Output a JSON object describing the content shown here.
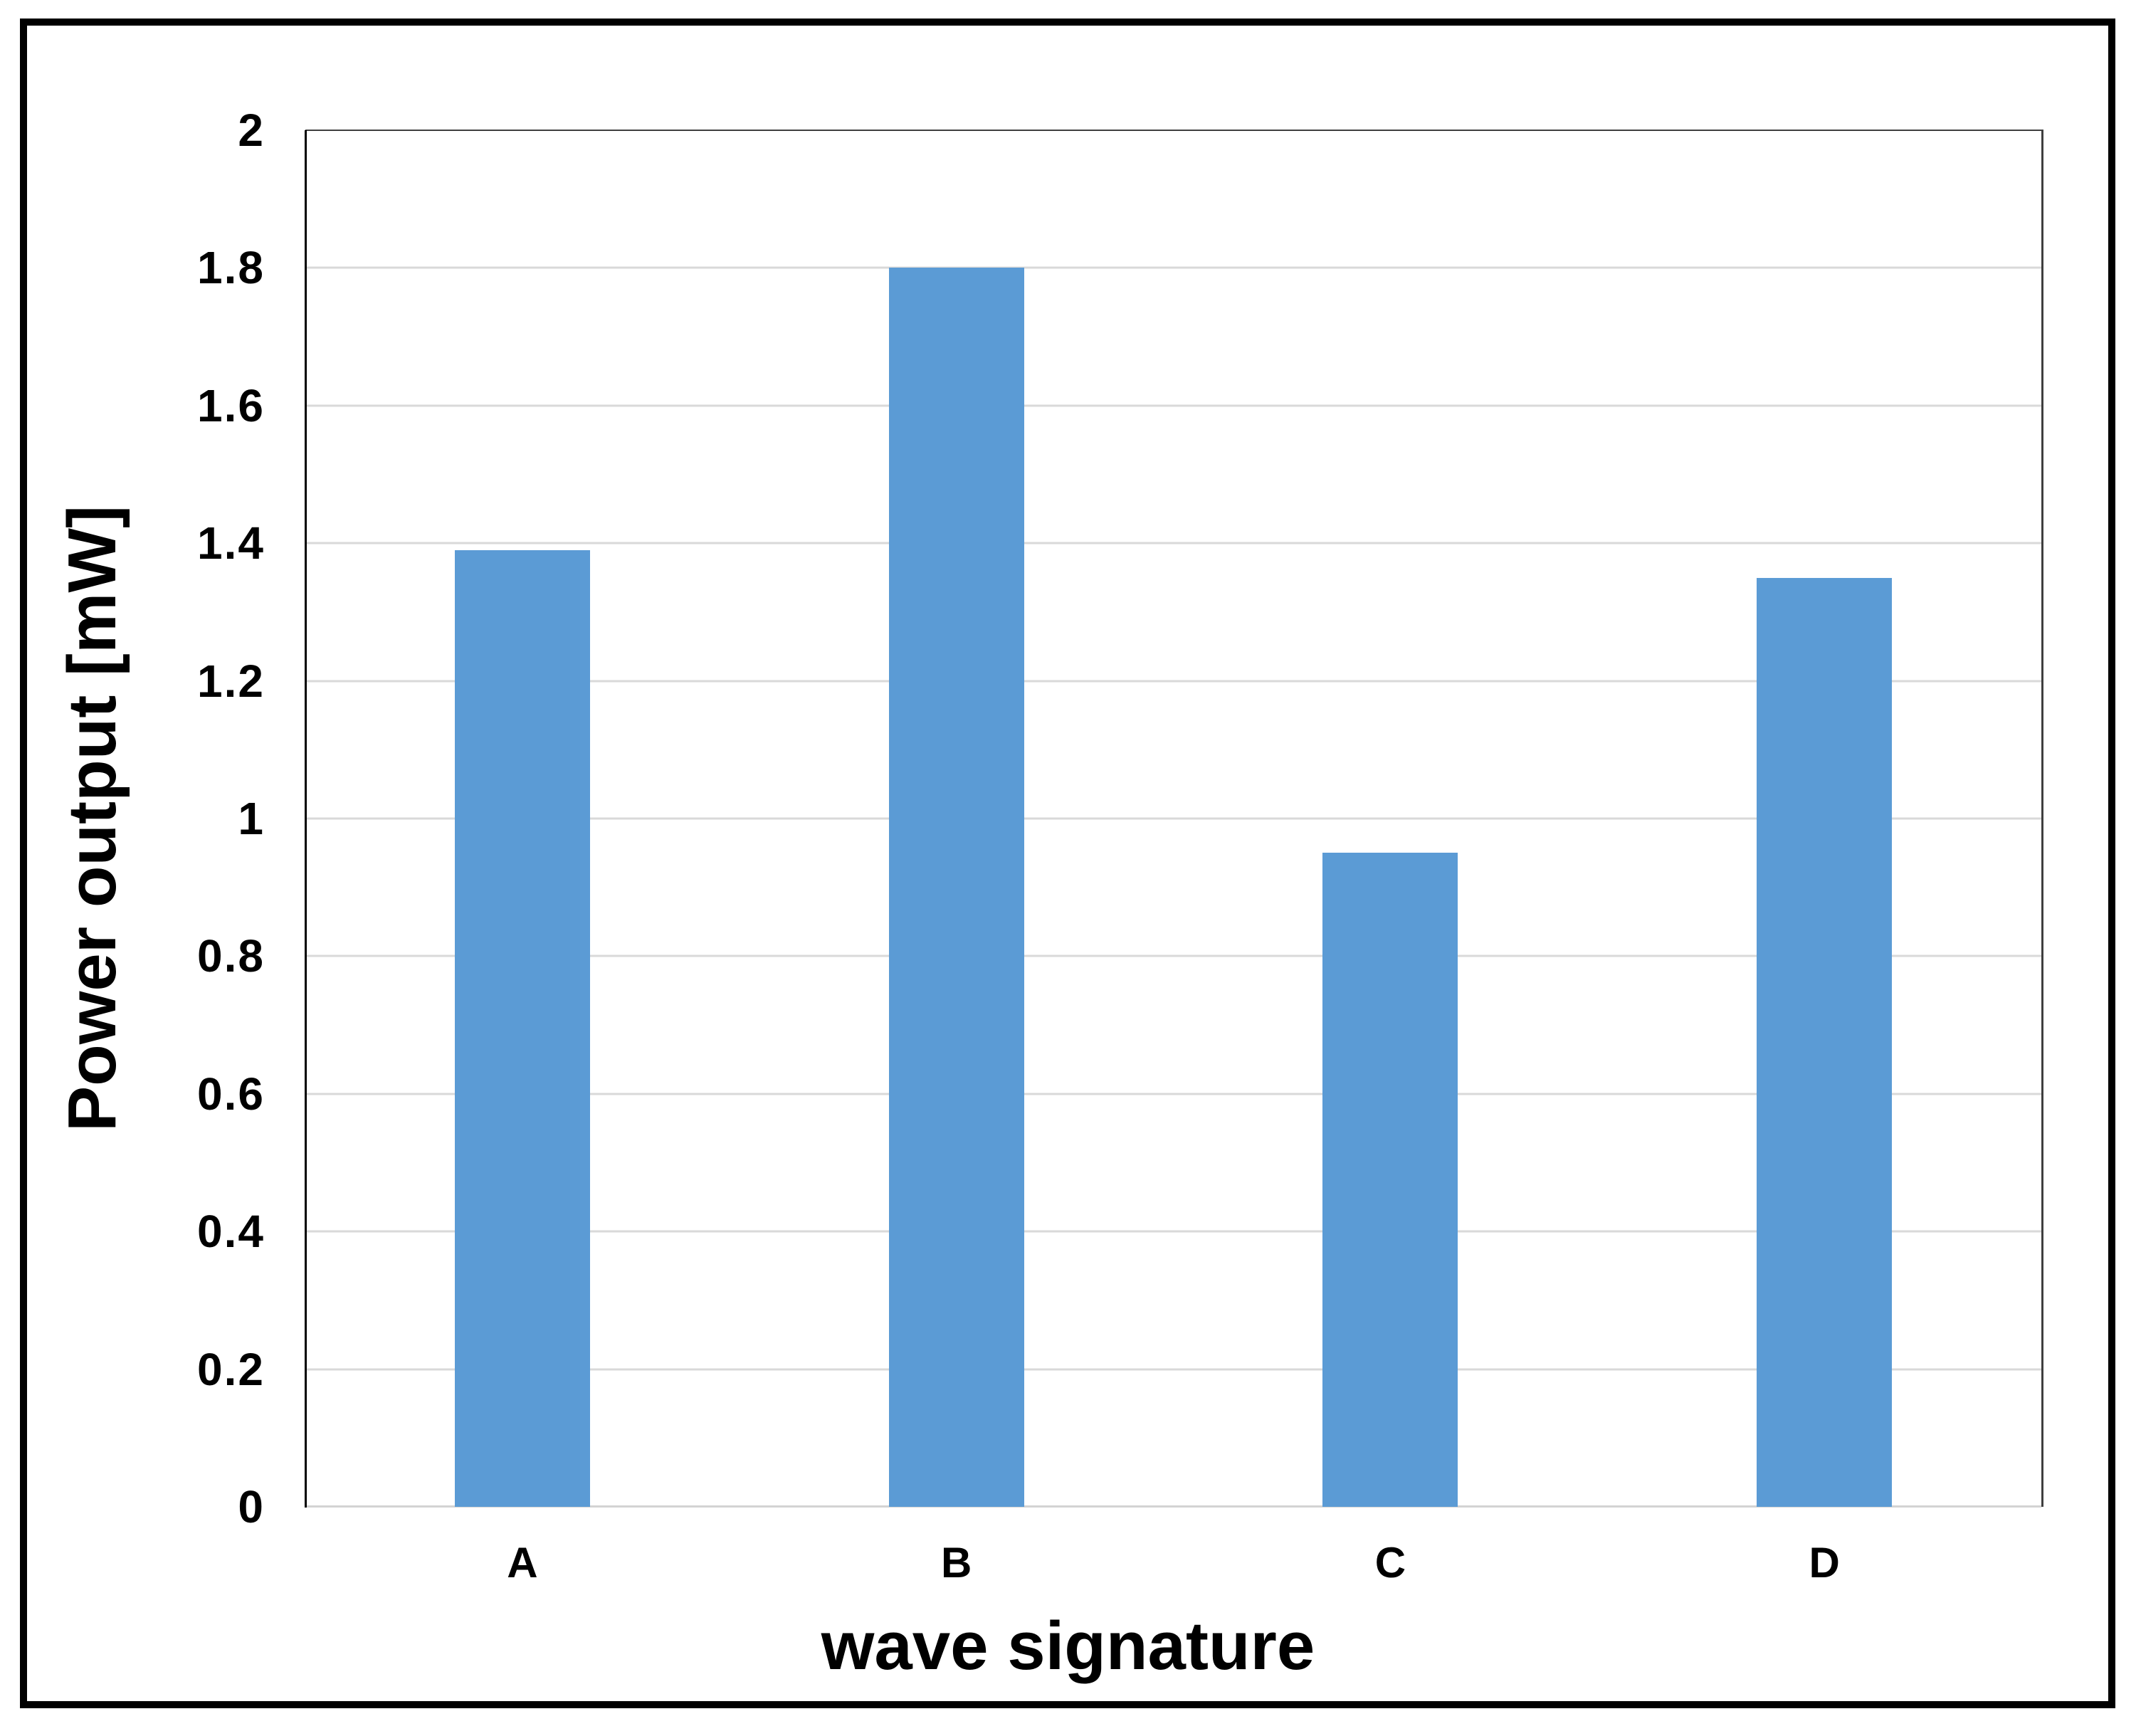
{
  "chart_data": {
    "type": "bar",
    "categories": [
      "A",
      "B",
      "C",
      "D"
    ],
    "values": [
      1.39,
      1.8,
      0.95,
      1.35
    ],
    "title": "",
    "xlabel": "wave signature",
    "ylabel": "Power output [mW]",
    "ylim": [
      0,
      2
    ],
    "yticks": [
      {
        "value": 0,
        "label": "0"
      },
      {
        "value": 0.2,
        "label": "0.2"
      },
      {
        "value": 0.4,
        "label": "0.4"
      },
      {
        "value": 0.6,
        "label": "0.6"
      },
      {
        "value": 0.8,
        "label": "0.8"
      },
      {
        "value": 1,
        "label": "1"
      },
      {
        "value": 1.2,
        "label": "1.2"
      },
      {
        "value": 1.4,
        "label": "1.4"
      },
      {
        "value": 1.6,
        "label": "1.6"
      },
      {
        "value": 1.8,
        "label": "1.8"
      },
      {
        "value": 2,
        "label": "2"
      }
    ],
    "grid": true,
    "legend": false
  },
  "colors": {
    "bar": "#5B9BD5",
    "gridline": "#D9D9D9",
    "baseline": "#D3D3D3",
    "axis": "#000000",
    "plot_border": "#3F3F3F",
    "frame": "#000000",
    "background": "#FFFFFF",
    "text": "#000000"
  }
}
